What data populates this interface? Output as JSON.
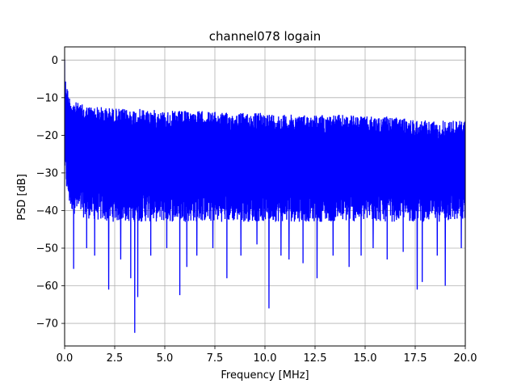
{
  "chart_data": {
    "type": "line",
    "title": "channel078 logain",
    "xlabel": "Frequency [MHz]",
    "ylabel": "PSD [dB]",
    "xlim": [
      0,
      20
    ],
    "ylim": [
      -76,
      3.5
    ],
    "grid": true,
    "xticks": [
      0,
      2.5,
      5,
      7.5,
      10,
      12.5,
      15,
      17.5,
      20
    ],
    "xtick_labels": [
      "0.0",
      "2.5",
      "5.0",
      "7.5",
      "10.0",
      "12.5",
      "15.0",
      "17.5",
      "20.0"
    ],
    "yticks": [
      0,
      -10,
      -20,
      -30,
      -40,
      -50,
      -60,
      -70
    ],
    "ytick_labels": [
      "0",
      "−10",
      "−20",
      "−30",
      "−40",
      "−50",
      "−60",
      "−70"
    ],
    "series": [
      {
        "color": "#0000ff",
        "envelope_x": [
          0,
          0.05,
          0.1,
          0.2,
          0.3,
          0.5,
          1,
          2,
          3,
          4,
          5,
          6,
          7,
          8,
          9,
          10,
          11,
          12,
          13,
          14,
          15,
          16,
          17,
          18,
          19,
          20
        ],
        "envelope_upper": [
          -3,
          -5,
          -6,
          -9,
          -10,
          -11,
          -12,
          -12.5,
          -13,
          -13,
          -13.5,
          -13.5,
          -13.5,
          -14,
          -14,
          -14,
          -14.5,
          -14.5,
          -14.5,
          -14.5,
          -15,
          -15,
          -15.5,
          -16,
          -16,
          -16
        ],
        "envelope_lower_typical": [
          -30,
          -33,
          -35,
          -38,
          -40,
          -41,
          -42,
          -43,
          -43,
          -43,
          -43,
          -43,
          -43,
          -43,
          -43,
          -43,
          -43,
          -43,
          -43,
          -43,
          -43,
          -43,
          -43,
          -43,
          -43,
          -43
        ],
        "dips": [
          [
            0.45,
            -55.5
          ],
          [
            1.1,
            -50
          ],
          [
            1.5,
            -52
          ],
          [
            2.2,
            -61
          ],
          [
            2.8,
            -53
          ],
          [
            3.3,
            -58
          ],
          [
            3.5,
            -72.5
          ],
          [
            3.65,
            -63
          ],
          [
            4.3,
            -52
          ],
          [
            5.1,
            -50
          ],
          [
            5.75,
            -62.5
          ],
          [
            6.1,
            -55
          ],
          [
            6.6,
            -52
          ],
          [
            7.4,
            -50
          ],
          [
            8.1,
            -58
          ],
          [
            8.8,
            -52
          ],
          [
            9.6,
            -49
          ],
          [
            10.2,
            -66
          ],
          [
            10.8,
            -52
          ],
          [
            11.2,
            -53
          ],
          [
            11.9,
            -54
          ],
          [
            12.6,
            -58
          ],
          [
            13.4,
            -52
          ],
          [
            14.2,
            -55
          ],
          [
            14.8,
            -52
          ],
          [
            15.4,
            -50
          ],
          [
            16.1,
            -53
          ],
          [
            16.9,
            -51
          ],
          [
            17.6,
            -61
          ],
          [
            17.85,
            -59
          ],
          [
            18.6,
            -52
          ],
          [
            19.0,
            -60
          ],
          [
            19.8,
            -50
          ]
        ]
      }
    ]
  }
}
